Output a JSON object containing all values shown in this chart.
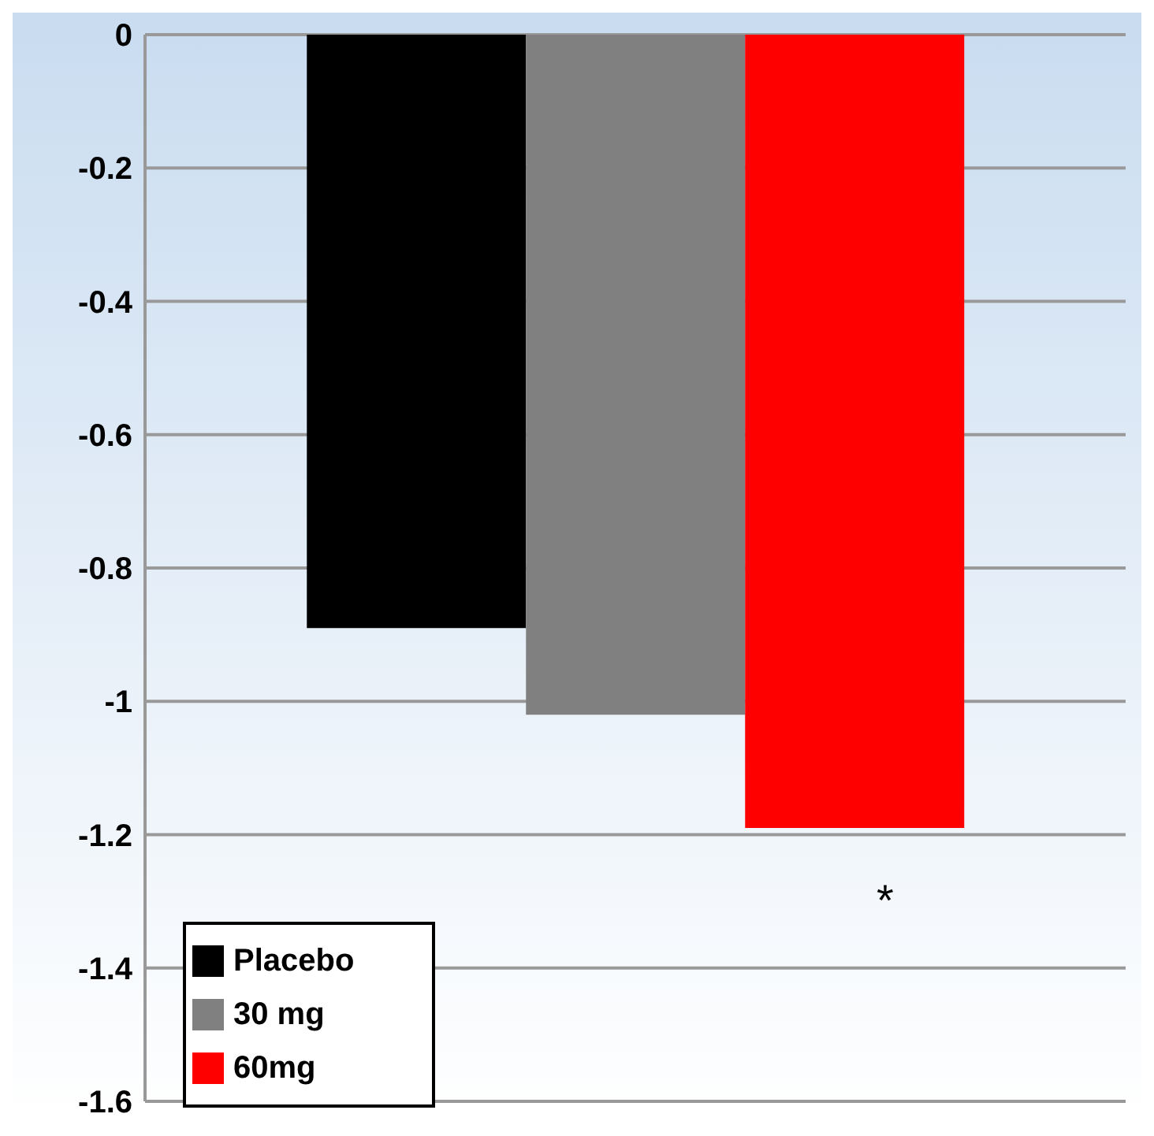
{
  "chart_data": {
    "type": "bar",
    "categories": [
      null
    ],
    "series": [
      {
        "name": "Placebo",
        "color": "#000000",
        "values": [
          -0.89
        ]
      },
      {
        "name": "30 mg",
        "color": "#808080",
        "values": [
          -1.02
        ]
      },
      {
        "name": "60mg",
        "color": "#ff0000",
        "values": [
          -1.19
        ]
      }
    ],
    "ylim": [
      -1.6,
      0
    ],
    "yticks": [
      0,
      -0.2,
      -0.4,
      -0.6,
      -0.8,
      -1,
      -1.2,
      -1.4,
      -1.6
    ],
    "grid": "y",
    "legend": "bottom left",
    "annotations": [
      "*"
    ]
  }
}
